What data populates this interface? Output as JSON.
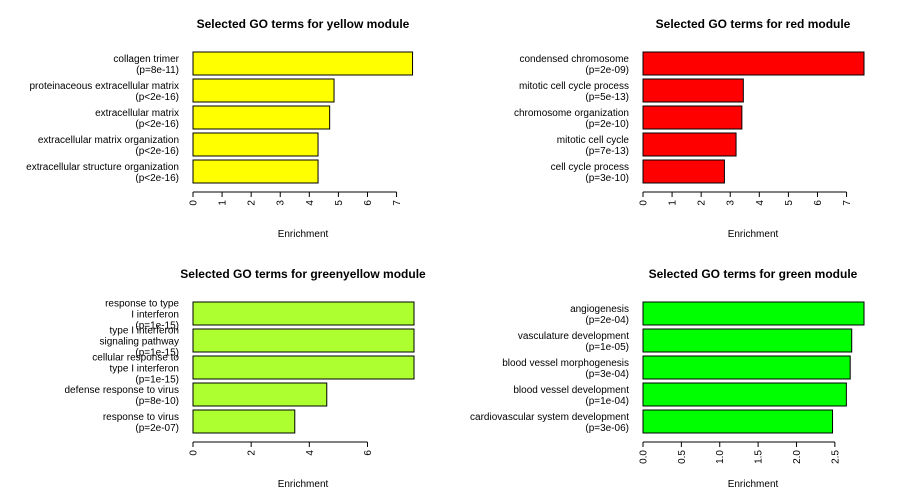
{
  "chart_data": [
    {
      "type": "bar",
      "orientation": "horizontal",
      "title": "Selected GO terms for yellow module",
      "xlabel": "Enrichment",
      "xlim": [
        0,
        7.6
      ],
      "xticks": [
        0,
        1,
        2,
        3,
        4,
        5,
        6,
        7
      ],
      "xtick_labels": [
        "0",
        "1",
        "2",
        "3",
        "4",
        "5",
        "6",
        "7"
      ],
      "color": "#ffff00",
      "categories": [
        [
          "collagen trimer",
          "(p=8e-11)"
        ],
        [
          "proteinaceous extracellular matrix",
          "(p<2e-16)"
        ],
        [
          "extracellular matrix",
          "(p<2e-16)"
        ],
        [
          "extracellular matrix organization",
          "(p<2e-16)"
        ],
        [
          "extracellular structure organization",
          "(p<2e-16)"
        ]
      ],
      "values": [
        7.55,
        4.85,
        4.7,
        4.3,
        4.3
      ]
    },
    {
      "type": "bar",
      "orientation": "horizontal",
      "title": "Selected GO terms for red module",
      "xlabel": "Enrichment",
      "xlim": [
        0,
        7.6
      ],
      "xticks": [
        0,
        1,
        2,
        3,
        4,
        5,
        6,
        7
      ],
      "xtick_labels": [
        "0",
        "1",
        "2",
        "3",
        "4",
        "5",
        "6",
        "7"
      ],
      "color": "#ff0000",
      "categories": [
        [
          "condensed chromosome",
          "(p=2e-09)"
        ],
        [
          "mitotic cell cycle process",
          "(p=5e-13)"
        ],
        [
          "chromosome organization",
          "(p=2e-10)"
        ],
        [
          "mitotic cell cycle",
          "(p=7e-13)"
        ],
        [
          "cell cycle process",
          "(p=3e-10)"
        ]
      ],
      "values": [
        7.6,
        3.45,
        3.4,
        3.2,
        2.8
      ]
    },
    {
      "type": "bar",
      "orientation": "horizontal",
      "title": "Selected GO terms for greenyellow module",
      "xlabel": "Enrichment",
      "xlim": [
        0,
        7.6
      ],
      "xticks": [
        0,
        2,
        4,
        6
      ],
      "xtick_labels": [
        "0",
        "2",
        "4",
        "6"
      ],
      "color": "#adff2f",
      "categories": [
        [
          "response to type",
          "I interferon",
          "(p=1e-15)"
        ],
        [
          "type I interferon",
          "signaling pathway",
          "(p=1e-15)"
        ],
        [
          "cellular response to",
          "type I interferon",
          "(p=1e-15)"
        ],
        [
          "defense response to virus",
          "(p=8e-10)"
        ],
        [
          "response to virus",
          "(p=2e-07)"
        ]
      ],
      "values": [
        7.6,
        7.6,
        7.6,
        4.6,
        3.5
      ]
    },
    {
      "type": "bar",
      "orientation": "horizontal",
      "title": "Selected GO terms for green module",
      "xlabel": "Enrichment",
      "xlim": [
        0,
        2.88
      ],
      "xticks": [
        0,
        0.5,
        1,
        1.5,
        2,
        2.5
      ],
      "xtick_labels": [
        "0.0",
        "0.5",
        "1.0",
        "1.5",
        "2.0",
        "2.5"
      ],
      "color": "#00ff00",
      "categories": [
        [
          "angiogenesis",
          "(p=2e-04)"
        ],
        [
          "vasculature development",
          "(p=1e-05)"
        ],
        [
          "blood vessel morphogenesis",
          "(p=3e-04)"
        ],
        [
          "blood vessel development",
          "(p=1e-04)"
        ],
        [
          "cardiovascular system development",
          "(p=3e-06)"
        ]
      ],
      "values": [
        2.88,
        2.72,
        2.7,
        2.65,
        2.47
      ]
    }
  ]
}
